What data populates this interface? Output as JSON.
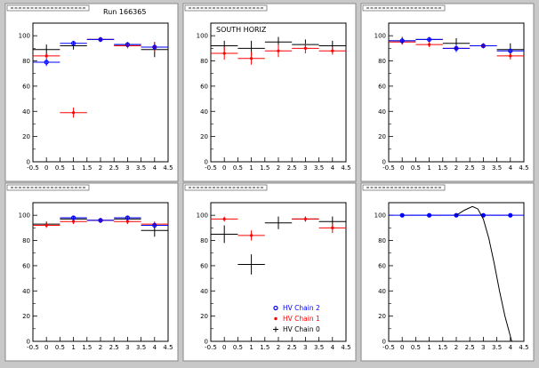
{
  "run_label": "Run 166365",
  "colors": {
    "chain2": "#0000ff",
    "chain1": "#ff0000",
    "chain0": "#000000",
    "canvas_bg": "#c8c8c8",
    "pad_bg": "#ffffff"
  },
  "legend": {
    "items": [
      {
        "label": "HV Chain 2",
        "series": "chain2",
        "marker": "circle"
      },
      {
        "label": "HV Chain 1",
        "series": "chain1",
        "marker": "star"
      },
      {
        "label": "HV Chain 0",
        "series": "chain0",
        "marker": "cross"
      }
    ]
  },
  "chart_data": [
    {
      "type": "scatter",
      "title": "",
      "annotation": "Run 166365",
      "xlim": [
        -0.5,
        4.5
      ],
      "ylim": [
        0,
        110
      ],
      "xticks": [
        "-0.5",
        "0",
        "0.5",
        "1",
        "1.5",
        "2",
        "2.5",
        "3",
        "3.5",
        "4",
        "4.5"
      ],
      "yticks": [
        "0",
        "20",
        "40",
        "60",
        "80",
        "100"
      ],
      "series": [
        {
          "key": "chain0",
          "points": [
            [
              0,
              89,
              4
            ],
            [
              1,
              92,
              3
            ],
            [
              2,
              97,
              2
            ],
            [
              3,
              93,
              2
            ],
            [
              4,
              89,
              6
            ]
          ]
        },
        {
          "key": "chain1",
          "points": [
            [
              0,
              84,
              2
            ],
            [
              1,
              39,
              4
            ],
            [
              2,
              97,
              1
            ],
            [
              3,
              92,
              2
            ],
            [
              4,
              91,
              4
            ]
          ]
        },
        {
          "key": "chain2",
          "points": [
            [
              0,
              79,
              3
            ],
            [
              1,
              94,
              2
            ],
            [
              2,
              97,
              1
            ],
            [
              3,
              93,
              1
            ],
            [
              4,
              91,
              2
            ]
          ]
        }
      ]
    },
    {
      "type": "scatter",
      "title": "",
      "annotation": "SOUTH HORIZ",
      "xlim": [
        -0.5,
        4.5
      ],
      "ylim": [
        0,
        110
      ],
      "xticks": [
        "-0.5",
        "0",
        "0.5",
        "1",
        "1.5",
        "2",
        "2.5",
        "3",
        "3.5",
        "4",
        "4.5"
      ],
      "yticks": [
        "0",
        "20",
        "40",
        "60",
        "80",
        "100"
      ],
      "series": [
        {
          "key": "chain0",
          "points": [
            [
              0,
              92,
              4
            ],
            [
              1,
              90,
              6
            ],
            [
              2,
              95,
              4
            ],
            [
              3,
              93,
              4
            ],
            [
              4,
              92,
              4
            ]
          ]
        },
        {
          "key": "chain1",
          "points": [
            [
              0,
              86,
              5
            ],
            [
              1,
              82,
              5
            ],
            [
              2,
              88,
              5
            ],
            [
              3,
              90,
              4
            ],
            [
              4,
              88,
              3
            ]
          ]
        }
      ]
    },
    {
      "type": "scatter",
      "title": "",
      "annotation": "",
      "xlim": [
        -0.5,
        4.5
      ],
      "ylim": [
        0,
        110
      ],
      "xticks": [
        "-0.5",
        "0",
        "0.5",
        "1",
        "1.5",
        "2",
        "2.5",
        "3",
        "3.5",
        "4",
        "4.5"
      ],
      "yticks": [
        "0",
        "20",
        "40",
        "60",
        "80",
        "100"
      ],
      "series": [
        {
          "key": "chain0",
          "points": [
            [
              0,
              96,
              3
            ],
            [
              1,
              97,
              2
            ],
            [
              2,
              94,
              4
            ],
            [
              3,
              92,
              2
            ],
            [
              4,
              89,
              5
            ]
          ]
        },
        {
          "key": "chain1",
          "points": [
            [
              0,
              95,
              2
            ],
            [
              1,
              93,
              2
            ],
            [
              2,
              90,
              2
            ],
            [
              3,
              92,
              2
            ],
            [
              4,
              84,
              3
            ]
          ]
        },
        {
          "key": "chain2",
          "points": [
            [
              0,
              96,
              2
            ],
            [
              1,
              97,
              1
            ],
            [
              2,
              90,
              3
            ],
            [
              3,
              92,
              1
            ],
            [
              4,
              88,
              2
            ]
          ]
        }
      ]
    },
    {
      "type": "scatter",
      "title": "",
      "annotation": "",
      "xlim": [
        -0.5,
        4.5
      ],
      "ylim": [
        0,
        110
      ],
      "xticks": [
        "-0.5",
        "0",
        "0.5",
        "1",
        "1.5",
        "2",
        "2.5",
        "3",
        "3.5",
        "4",
        "4.5"
      ],
      "yticks": [
        "0",
        "20",
        "40",
        "60",
        "80",
        "100"
      ],
      "series": [
        {
          "key": "chain0",
          "points": [
            [
              0,
              93,
              2
            ],
            [
              1,
              97,
              2
            ],
            [
              2,
              96,
              2
            ],
            [
              3,
              97,
              2
            ],
            [
              4,
              88,
              5
            ]
          ]
        },
        {
          "key": "chain1",
          "points": [
            [
              0,
              92,
              2
            ],
            [
              1,
              95,
              2
            ],
            [
              2,
              96,
              2
            ],
            [
              3,
              95,
              2
            ],
            [
              4,
              93,
              2
            ]
          ]
        },
        {
          "key": "chain2",
          "points": [
            [
              1,
              98,
              1
            ],
            [
              2,
              96,
              1
            ],
            [
              3,
              98,
              1
            ],
            [
              4,
              92,
              2
            ]
          ]
        }
      ]
    },
    {
      "type": "scatter",
      "title": "",
      "annotation": "",
      "xlim": [
        -0.5,
        4.5
      ],
      "ylim": [
        0,
        110
      ],
      "xticks": [
        "-0.5",
        "0",
        "0.5",
        "1",
        "1.5",
        "2",
        "2.5",
        "3",
        "3.5",
        "4",
        "4.5"
      ],
      "yticks": [
        "0",
        "20",
        "40",
        "60",
        "80",
        "100"
      ],
      "series": [
        {
          "key": "chain0",
          "points": [
            [
              0,
              85,
              7
            ],
            [
              1,
              61,
              8
            ],
            [
              2,
              94,
              5
            ],
            [
              3,
              97,
              2
            ],
            [
              4,
              95,
              4
            ]
          ]
        },
        {
          "key": "chain1",
          "points": [
            [
              0,
              97,
              2
            ],
            [
              1,
              84,
              4
            ],
            [
              3,
              97,
              2
            ],
            [
              4,
              90,
              4
            ]
          ]
        }
      ],
      "legend": true
    },
    {
      "type": "line",
      "title": "",
      "annotation": "",
      "xlim": [
        -0.5,
        4.5
      ],
      "ylim": [
        0,
        110
      ],
      "xticks": [
        "-0.5",
        "0",
        "0.5",
        "1",
        "1.5",
        "2",
        "2.5",
        "3",
        "3.5",
        "4",
        "4.5"
      ],
      "yticks": [
        "0",
        "20",
        "40",
        "60",
        "80",
        "100"
      ],
      "series": [
        {
          "key": "chain2",
          "points": [
            [
              0,
              100,
              0
            ],
            [
              1,
              100,
              0
            ],
            [
              2,
              100,
              0
            ],
            [
              3,
              100,
              0
            ],
            [
              4,
              100,
              0
            ]
          ]
        }
      ],
      "fit_curve": [
        [
          2.0,
          100
        ],
        [
          2.3,
          104
        ],
        [
          2.6,
          107
        ],
        [
          2.8,
          105
        ],
        [
          3.0,
          97
        ],
        [
          3.2,
          82
        ],
        [
          3.4,
          62
        ],
        [
          3.6,
          40
        ],
        [
          3.8,
          20
        ],
        [
          4.0,
          4
        ],
        [
          4.05,
          0
        ]
      ]
    }
  ]
}
